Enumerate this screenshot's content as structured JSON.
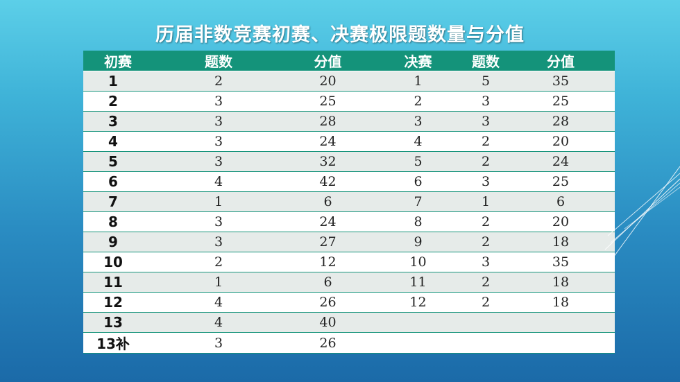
{
  "title": "历届非数竞赛初赛、决赛极限题数量与分值",
  "columns": [
    "初赛",
    "题数",
    "分值",
    "决赛",
    "题数",
    "分值"
  ],
  "rows": [
    [
      "1",
      "2",
      "20",
      "1",
      "5",
      "35"
    ],
    [
      "2",
      "3",
      "25",
      "2",
      "3",
      "25"
    ],
    [
      "3",
      "3",
      "28",
      "3",
      "3",
      "28"
    ],
    [
      "4",
      "3",
      "24",
      "4",
      "2",
      "20"
    ],
    [
      "5",
      "3",
      "32",
      "5",
      "2",
      "24"
    ],
    [
      "6",
      "4",
      "42",
      "6",
      "3",
      "25"
    ],
    [
      "7",
      "1",
      "6",
      "7",
      "1",
      "6"
    ],
    [
      "8",
      "3",
      "24",
      "8",
      "2",
      "20"
    ],
    [
      "9",
      "3",
      "27",
      "9",
      "2",
      "18"
    ],
    [
      "10",
      "2",
      "12",
      "10",
      "3",
      "35"
    ],
    [
      "11",
      "1",
      "6",
      "11",
      "2",
      "18"
    ],
    [
      "12",
      "4",
      "26",
      "12",
      "2",
      "18"
    ],
    [
      "13",
      "4",
      "40",
      "",
      "",
      ""
    ],
    [
      "13补",
      "3",
      "26",
      "",
      "",
      ""
    ]
  ],
  "colors": {
    "header": "#14937a",
    "row_alt": "#e6ebe9",
    "row": "#ffffff"
  }
}
